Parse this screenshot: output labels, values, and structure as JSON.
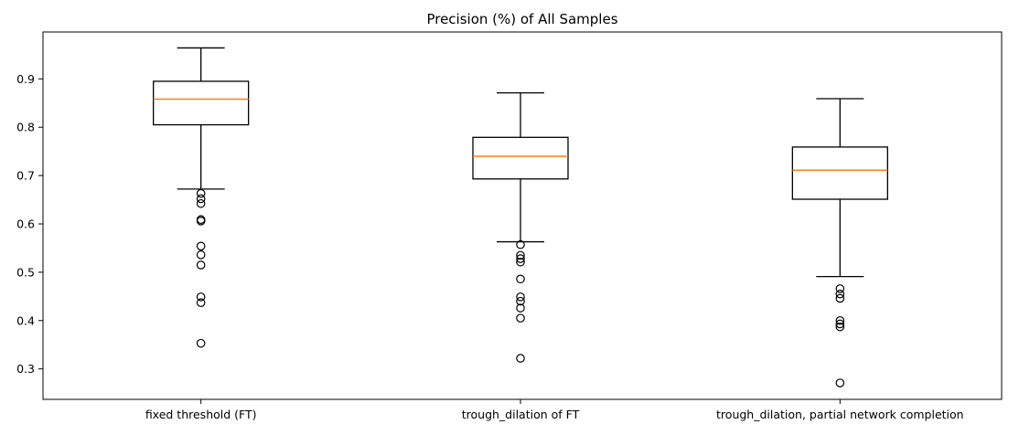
{
  "chart_data": {
    "type": "box",
    "title": "Precision (%) of All Samples",
    "xlabel": "",
    "ylabel": "",
    "ylim": [
      0.237,
      0.997
    ],
    "yticks": [
      0.3,
      0.4,
      0.5,
      0.6,
      0.7,
      0.8,
      0.9
    ],
    "ytick_labels": [
      "0.3",
      "0.4",
      "0.5",
      "0.6",
      "0.7",
      "0.8",
      "0.9"
    ],
    "grid": false,
    "categories": [
      "fixed threshold (FT)",
      "trough_dilation of FT",
      "trough_dilation, partial network completion"
    ],
    "boxes": [
      {
        "whisker_low": 0.672,
        "q1": 0.805,
        "median": 0.858,
        "q3": 0.895,
        "whisker_high": 0.964,
        "fliers": [
          0.663,
          0.652,
          0.642,
          0.609,
          0.606,
          0.554,
          0.536,
          0.515,
          0.449,
          0.437,
          0.353
        ]
      },
      {
        "whisker_low": 0.563,
        "q1": 0.693,
        "median": 0.74,
        "q3": 0.779,
        "whisker_high": 0.871,
        "fliers": [
          0.557,
          0.535,
          0.528,
          0.521,
          0.486,
          0.449,
          0.44,
          0.426,
          0.405,
          0.322
        ]
      },
      {
        "whisker_low": 0.491,
        "q1": 0.651,
        "median": 0.711,
        "q3": 0.759,
        "whisker_high": 0.859,
        "fliers": [
          0.466,
          0.455,
          0.446,
          0.4,
          0.393,
          0.387,
          0.271
        ]
      }
    ]
  }
}
